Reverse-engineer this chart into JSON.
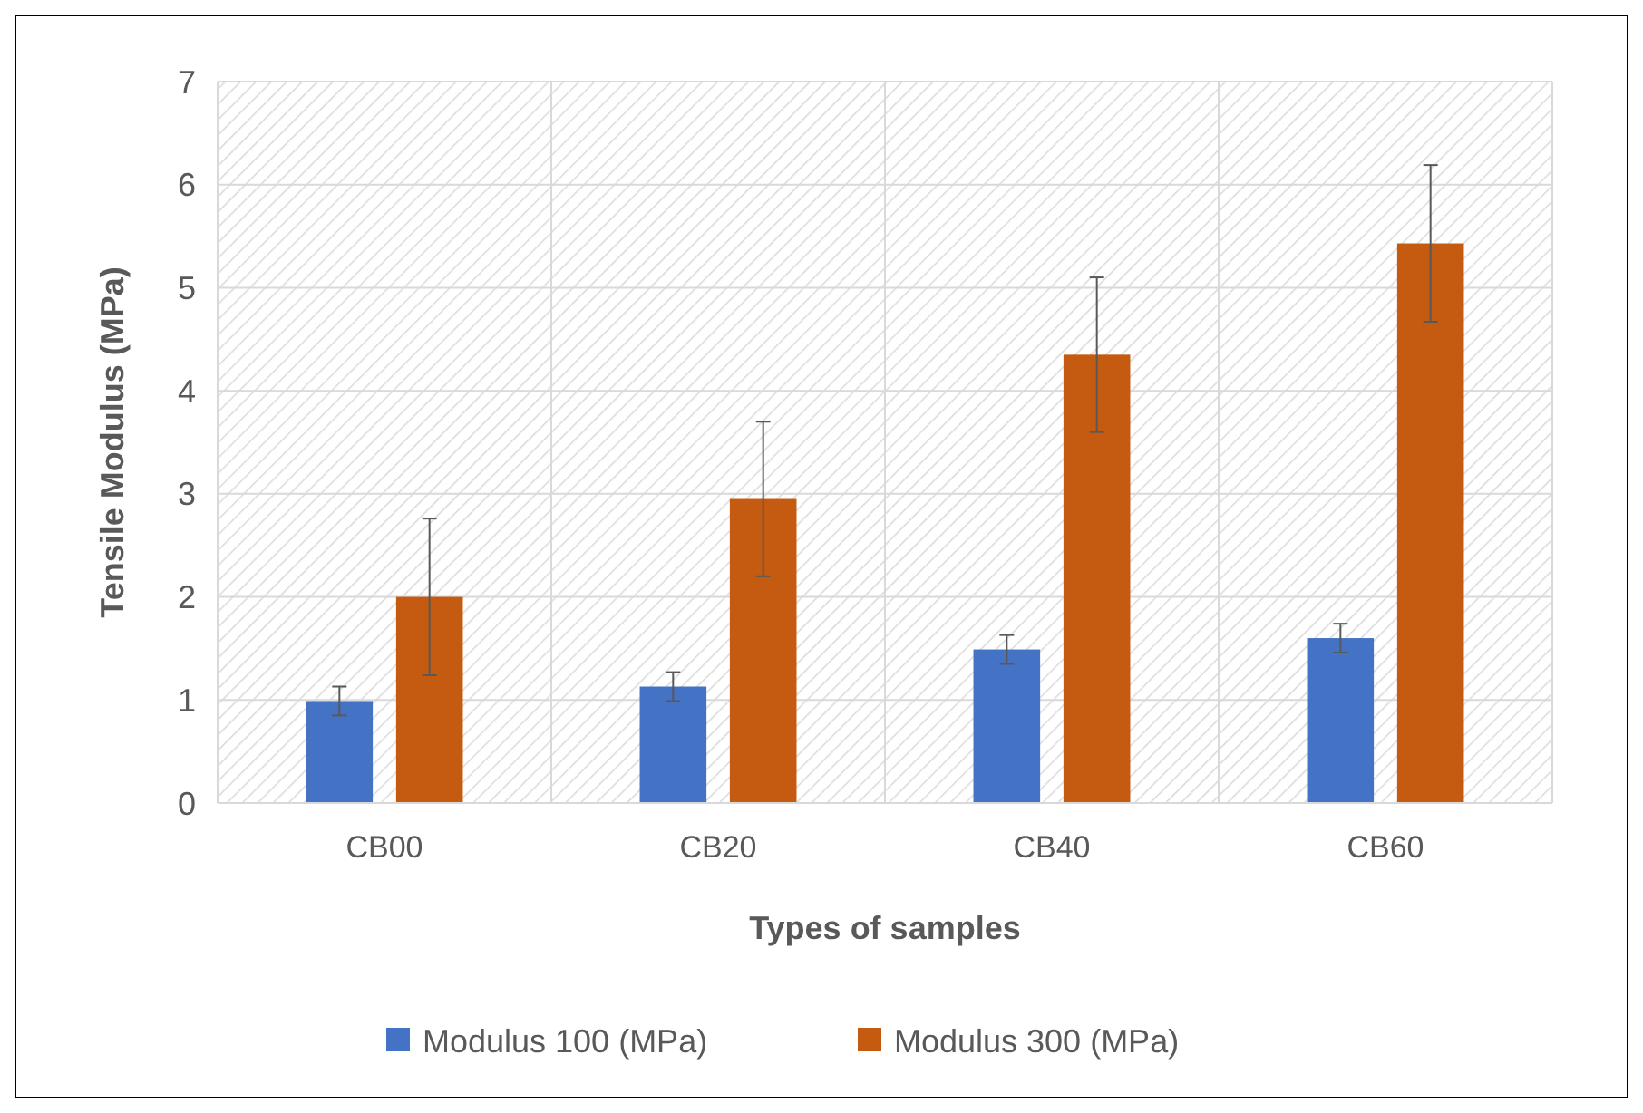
{
  "chart_data": {
    "type": "bar",
    "xlabel": "Types of samples",
    "ylabel": "Tensile Modulus (MPa)",
    "categories": [
      "CB00",
      "CB20",
      "CB40",
      "CB60"
    ],
    "series": [
      {
        "name": "Modulus 100 (MPa)",
        "color": "#4472c4",
        "values": [
          0.99,
          1.13,
          1.49,
          1.6
        ],
        "errors": [
          0.14,
          0.14,
          0.14,
          0.14
        ]
      },
      {
        "name": "Modulus 300 (MPa)",
        "color": "#c55a11",
        "values": [
          2.0,
          2.95,
          4.35,
          5.43
        ],
        "errors": [
          0.76,
          0.75,
          0.75,
          0.76
        ]
      }
    ],
    "ylim": [
      0,
      7
    ],
    "yticks": [
      0,
      1,
      2,
      3,
      4,
      5,
      6,
      7
    ],
    "grid": "y",
    "legend": "bottom"
  }
}
